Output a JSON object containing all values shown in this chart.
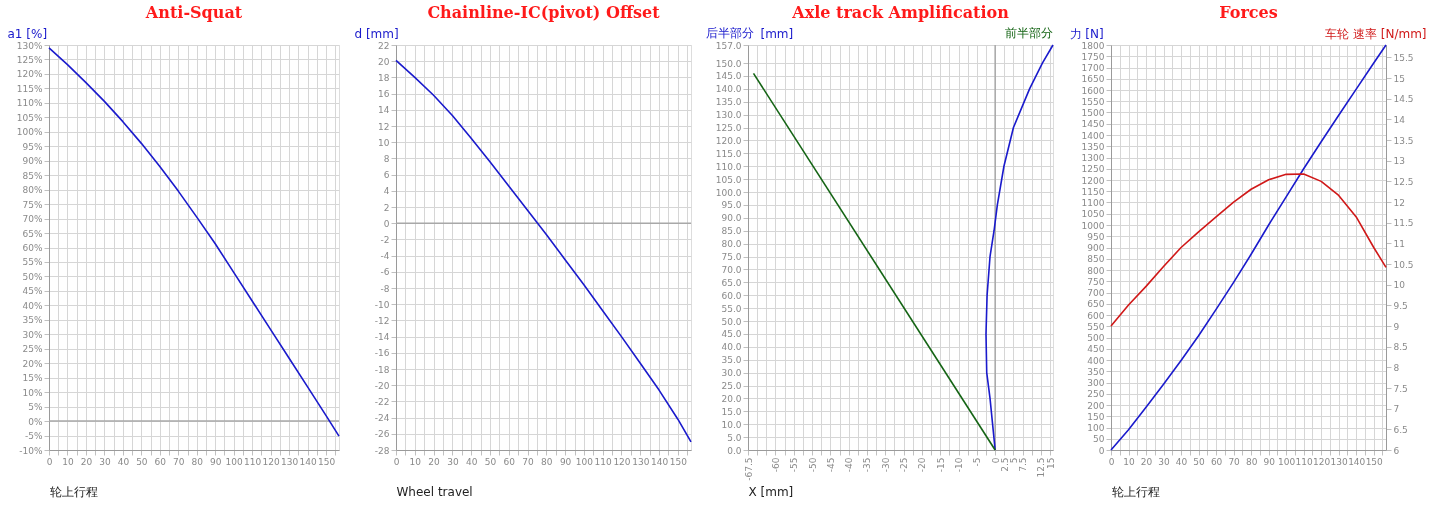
{
  "chart_data": [
    {
      "type": "line",
      "title": "Anti-Squat",
      "ylabel": "a1 [%]",
      "xlabel": "轮上行程",
      "grid": true,
      "x": [
        0,
        10,
        20,
        30,
        40,
        50,
        60,
        70,
        80,
        90,
        100,
        110,
        120,
        130,
        140,
        150,
        157
      ],
      "series": [
        {
          "color": "#1a1acc",
          "values": [
            129,
            123.2,
            117,
            110.5,
            103.5,
            96,
            88,
            79.5,
            70.5,
            61.3,
            51.4,
            41.5,
            31.6,
            21.7,
            11.8,
            1.9,
            -5.2
          ]
        }
      ],
      "xlim": [
        0,
        157
      ],
      "ylim": [
        -10,
        130
      ],
      "xticks": [
        0,
        {
          "value": 5,
          "label": null
        },
        10,
        {
          "value": 15,
          "label": null
        },
        20,
        {
          "value": 25,
          "label": null
        },
        30,
        {
          "value": 35,
          "label": null
        },
        40,
        {
          "value": 45,
          "label": null
        },
        50,
        {
          "value": 55,
          "label": null
        },
        60,
        {
          "value": 65,
          "label": null
        },
        70,
        {
          "value": 75,
          "label": null
        },
        80,
        {
          "value": 85,
          "label": null
        },
        90,
        {
          "value": 95,
          "label": null
        },
        100,
        {
          "value": 105,
          "label": null
        },
        110,
        {
          "value": 115,
          "label": null
        },
        120,
        {
          "value": 125,
          "label": null
        },
        130,
        {
          "value": 135,
          "label": null
        },
        140,
        {
          "value": 145,
          "label": null
        },
        150,
        {
          "value": 155,
          "label": null
        }
      ],
      "yticks": [
        {
          "value": -10,
          "label": "-10%"
        },
        {
          "value": -5,
          "label": "-5%"
        },
        {
          "value": 0,
          "label": "0%"
        },
        {
          "value": 5,
          "label": "5%"
        },
        {
          "value": 10,
          "label": "10%"
        },
        {
          "value": 15,
          "label": "15%"
        },
        {
          "value": 20,
          "label": "20%"
        },
        {
          "value": 25,
          "label": "25%"
        },
        {
          "value": 30,
          "label": "30%"
        },
        {
          "value": 35,
          "label": "35%"
        },
        {
          "value": 40,
          "label": "40%"
        },
        {
          "value": 45,
          "label": "45%"
        },
        {
          "value": 50,
          "label": "50%"
        },
        {
          "value": 55,
          "label": "55%"
        },
        {
          "value": 60,
          "label": "60%"
        },
        {
          "value": 65,
          "label": "65%"
        },
        {
          "value": 70,
          "label": "70%"
        },
        {
          "value": 75,
          "label": "75%"
        },
        {
          "value": 80,
          "label": "80%"
        },
        {
          "value": 85,
          "label": "85%"
        },
        {
          "value": 90,
          "label": "90%"
        },
        {
          "value": 95,
          "label": "95%"
        },
        {
          "value": 100,
          "label": "100%"
        },
        {
          "value": 105,
          "label": "105%"
        },
        {
          "value": 110,
          "label": "110%"
        },
        {
          "value": 115,
          "label": "115%"
        },
        {
          "value": 120,
          "label": "120%"
        },
        {
          "value": 125,
          "label": "125%"
        },
        {
          "value": 130,
          "label": "130%"
        }
      ],
      "ref_lines": [
        {
          "axis": "y",
          "value": 0,
          "color": "#a8a8a8"
        }
      ]
    },
    {
      "type": "line",
      "title": "Chainline-IC(pivot) Offset",
      "ylabel": "d [mm]",
      "xlabel": "Wheel travel",
      "grid": true,
      "x": [
        0,
        10,
        20,
        30,
        40,
        50,
        60,
        70,
        80,
        90,
        100,
        110,
        120,
        130,
        140,
        150,
        157
      ],
      "series": [
        {
          "color": "#1a1acc",
          "values": [
            20.1,
            18,
            15.8,
            13.3,
            10.5,
            7.6,
            4.6,
            1.6,
            -1.4,
            -4.5,
            -7.6,
            -10.8,
            -14,
            -17.3,
            -20.6,
            -24.2,
            -27
          ]
        }
      ],
      "xlim": [
        0,
        157
      ],
      "ylim": [
        -28,
        22
      ],
      "xticks": [
        0,
        {
          "value": 5,
          "label": null
        },
        10,
        {
          "value": 15,
          "label": null
        },
        20,
        {
          "value": 25,
          "label": null
        },
        30,
        {
          "value": 35,
          "label": null
        },
        40,
        {
          "value": 45,
          "label": null
        },
        50,
        {
          "value": 55,
          "label": null
        },
        60,
        {
          "value": 65,
          "label": null
        },
        70,
        {
          "value": 75,
          "label": null
        },
        80,
        {
          "value": 85,
          "label": null
        },
        90,
        {
          "value": 95,
          "label": null
        },
        100,
        {
          "value": 105,
          "label": null
        },
        110,
        {
          "value": 115,
          "label": null
        },
        120,
        {
          "value": 125,
          "label": null
        },
        130,
        {
          "value": 135,
          "label": null
        },
        140,
        {
          "value": 145,
          "label": null
        },
        150,
        {
          "value": 155,
          "label": null
        }
      ],
      "yticks": [
        -28,
        -26,
        -24,
        -22,
        -20,
        -18,
        -16,
        -14,
        -12,
        -10,
        -8,
        -6,
        -4,
        -2,
        0,
        2,
        4,
        6,
        8,
        10,
        12,
        14,
        16,
        18,
        20,
        22
      ],
      "ref_lines": [
        {
          "axis": "y",
          "value": 0,
          "color": "#a8a8a8"
        }
      ]
    },
    {
      "type": "line",
      "title": "Axle track Amplification",
      "ylabel": "[mm]",
      "xlabel": "X [mm]",
      "grid": true,
      "series": [
        {
          "name": "后半部分",
          "color": "#1a1acc",
          "x": [
            0,
            -0.7,
            -1.4,
            -2.3,
            -2.5,
            -2.2,
            -1.4,
            -0.3,
            0.6,
            2.4,
            5,
            9.4,
            12.9,
            15.8
          ],
          "values": [
            0,
            10,
            20,
            30,
            45,
            60,
            75,
            85,
            95,
            110,
            125,
            140,
            150,
            157
          ]
        },
        {
          "name": "前半部分",
          "color": "#146414",
          "x": [
            -66,
            0
          ],
          "values": [
            146,
            0
          ]
        }
      ],
      "xlim": [
        -67.5,
        15.8
      ],
      "ylim": [
        0,
        157
      ],
      "xticks": [
        {
          "value": -67.5,
          "label": "-67.5"
        },
        {
          "value": -65,
          "label": null
        },
        {
          "value": -62.5,
          "label": null
        },
        -60,
        {
          "value": -57.5,
          "label": null
        },
        -55,
        {
          "value": -52.5,
          "label": null
        },
        -50,
        {
          "value": -47.5,
          "label": null
        },
        -45,
        {
          "value": -42.5,
          "label": null
        },
        -40,
        {
          "value": -37.5,
          "label": null
        },
        -35,
        {
          "value": -32.5,
          "label": null
        },
        -30,
        {
          "value": -27.5,
          "label": null
        },
        -25,
        {
          "value": -22.5,
          "label": null
        },
        -20,
        {
          "value": -17.5,
          "label": null
        },
        -15,
        {
          "value": -12.5,
          "label": null
        },
        -10,
        {
          "value": -7.5,
          "label": null
        },
        -5,
        {
          "value": -2.5,
          "label": null
        },
        0,
        2.5,
        5,
        7.5,
        {
          "value": 10,
          "label": null
        },
        12.5,
        15
      ],
      "yticks": [
        {
          "value": 0,
          "label": "0.0"
        },
        {
          "value": 5,
          "label": "5.0"
        },
        {
          "value": 10,
          "label": "10.0"
        },
        {
          "value": 15,
          "label": "15.0"
        },
        {
          "value": 20,
          "label": "20.0"
        },
        {
          "value": 25,
          "label": "25.0"
        },
        {
          "value": 30,
          "label": "30.0"
        },
        {
          "value": 35,
          "label": "35.0"
        },
        {
          "value": 40,
          "label": "40.0"
        },
        {
          "value": 45,
          "label": "45.0"
        },
        {
          "value": 50,
          "label": "50.0"
        },
        {
          "value": 55,
          "label": "55.0"
        },
        {
          "value": 60,
          "label": "60.0"
        },
        {
          "value": 65,
          "label": "65.0"
        },
        {
          "value": 70,
          "label": "70.0"
        },
        {
          "value": 75,
          "label": "75.0"
        },
        {
          "value": 80,
          "label": "80.0"
        },
        {
          "value": 85,
          "label": "85.0"
        },
        {
          "value": 90,
          "label": "90.0"
        },
        {
          "value": 95,
          "label": "95.0"
        },
        {
          "value": 100,
          "label": "100.0"
        },
        {
          "value": 105,
          "label": "105.0"
        },
        {
          "value": 110,
          "label": "110.0"
        },
        {
          "value": 115,
          "label": "115.0"
        },
        {
          "value": 120,
          "label": "120.0"
        },
        {
          "value": 125,
          "label": "125.0"
        },
        {
          "value": 130,
          "label": "130.0"
        },
        {
          "value": 135,
          "label": "135.0"
        },
        {
          "value": 140,
          "label": "140.0"
        },
        {
          "value": 145,
          "label": "145.0"
        },
        {
          "value": 150,
          "label": "150.0"
        },
        {
          "value": 157,
          "label": "157.0"
        }
      ],
      "ref_lines": [
        {
          "axis": "x",
          "value": 0,
          "color": "#a8a8a8"
        }
      ]
    },
    {
      "type": "line",
      "title": "Forces",
      "ylabel": "力 [N]",
      "y2label": "车轮 速率 [N/mm]",
      "xlabel": "轮上行程",
      "grid": true,
      "x": [
        0,
        10,
        20,
        30,
        40,
        50,
        60,
        70,
        80,
        90,
        100,
        110,
        120,
        130,
        140,
        150,
        157
      ],
      "series": [
        {
          "color": "#1a1acc",
          "values": [
            0,
            90,
            190,
            292,
            398,
            508,
            625,
            745,
            870,
            1000,
            1125,
            1250,
            1370,
            1488,
            1604,
            1720,
            1800
          ]
        },
        {
          "color": "#d01818",
          "axis": "y2",
          "values": [
            9,
            9.51,
            9.96,
            10.44,
            10.9,
            11.28,
            11.64,
            12.0,
            12.31,
            12.54,
            12.67,
            12.68,
            12.5,
            12.16,
            11.64,
            10.9,
            10.42
          ]
        }
      ],
      "xlim": [
        0,
        157
      ],
      "ylim": [
        0,
        1800
      ],
      "y2lim": [
        6,
        15.8
      ],
      "xticks": [
        0,
        {
          "value": 5,
          "label": null
        },
        10,
        {
          "value": 15,
          "label": null
        },
        20,
        {
          "value": 25,
          "label": null
        },
        30,
        {
          "value": 35,
          "label": null
        },
        40,
        {
          "value": 45,
          "label": null
        },
        50,
        {
          "value": 55,
          "label": null
        },
        60,
        {
          "value": 65,
          "label": null
        },
        70,
        {
          "value": 75,
          "label": null
        },
        80,
        {
          "value": 85,
          "label": null
        },
        90,
        {
          "value": 95,
          "label": null
        },
        100,
        {
          "value": 105,
          "label": null
        },
        110,
        {
          "value": 115,
          "label": null
        },
        120,
        {
          "value": 125,
          "label": null
        },
        130,
        {
          "value": 135,
          "label": null
        },
        140,
        {
          "value": 145,
          "label": null
        },
        150,
        {
          "value": 155,
          "label": null
        }
      ],
      "yticks": [
        0,
        50,
        100,
        150,
        200,
        250,
        300,
        350,
        400,
        450,
        500,
        550,
        600,
        650,
        700,
        750,
        800,
        850,
        900,
        950,
        1000,
        1050,
        1100,
        1150,
        1200,
        1250,
        1300,
        1350,
        1400,
        1450,
        1500,
        1550,
        1600,
        1650,
        1700,
        1750,
        1800
      ],
      "y2ticks": [
        6,
        6.5,
        7,
        7.5,
        8,
        8.5,
        9,
        9.5,
        10,
        10.5,
        11,
        11.5,
        12,
        12.5,
        13,
        13.5,
        14,
        14.5,
        15,
        15.5
      ]
    }
  ]
}
